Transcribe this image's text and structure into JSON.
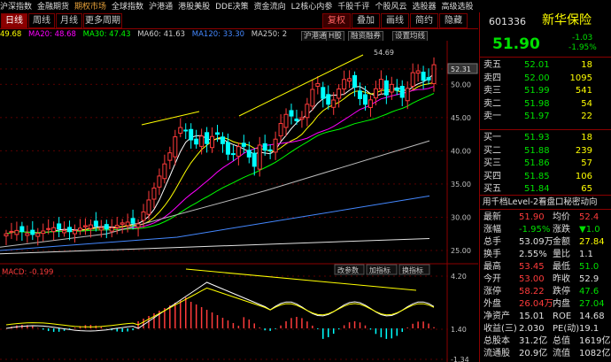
{
  "top_menu": [
    "沪深指数",
    "金融期货",
    "期权市场",
    "全球指数",
    "沪港通",
    "港股美股",
    "DDE决策",
    "资金流向",
    "L2核心内参",
    "千股千评",
    "个股风云",
    "选股器",
    "高级选股"
  ],
  "top_menu_active_index": 2,
  "tabs": {
    "daily": "日线",
    "weekly": "周线",
    "monthly": "月线",
    "more": "更多周期",
    "restore": "复权",
    "overlay": "叠加",
    "quota": "画线",
    "simple": "简约",
    "hide": "隐藏"
  },
  "ma": {
    "ma5": "49.68",
    "ma20": "MA20: 48.68",
    "ma30": "MA30: 47.43",
    "ma60": "MA60: 41.63",
    "ma120": "MA120: 33.30",
    "ma250": "MA250: 2"
  },
  "chart_buttons": {
    "hgt": "沪港通",
    "hshares": "H股",
    "financing": "融资融券",
    "settings": "设置均线"
  },
  "price_axis": [
    "52.31",
    "50.00",
    "45.00",
    "40.00",
    "35.00",
    "30.00",
    "25.00"
  ],
  "max_label": "54.69",
  "indicator": {
    "name": "MACD: -0.199",
    "params": "改参数",
    "add": "加指标",
    "switch": "换指标",
    "axis": [
      "4.20",
      "1.40",
      "-1.34"
    ]
  },
  "stock": {
    "code": "601336",
    "name": "新华保险",
    "price": "51.90",
    "change": "-1.03",
    "change_pct": "-1.95%"
  },
  "asks": [
    {
      "label": "卖五",
      "price": "52.01",
      "vol": "18"
    },
    {
      "label": "卖四",
      "price": "52.00",
      "vol": "1095"
    },
    {
      "label": "卖三",
      "price": "51.99",
      "vol": "541"
    },
    {
      "label": "卖二",
      "price": "51.98",
      "vol": "54"
    },
    {
      "label": "卖一",
      "price": "51.97",
      "vol": "22"
    }
  ],
  "bids": [
    {
      "label": "买一",
      "price": "51.93",
      "vol": "18"
    },
    {
      "label": "买二",
      "price": "51.88",
      "vol": "239"
    },
    {
      "label": "买三",
      "price": "51.86",
      "vol": "57"
    },
    {
      "label": "买四",
      "price": "51.85",
      "vol": "106"
    },
    {
      "label": "买五",
      "price": "51.84",
      "vol": "65"
    }
  ],
  "level2_banner": "用千档Level-2看盘口秘密动向",
  "stats": [
    {
      "l1": "最新",
      "v1": "51.90",
      "c1": "red",
      "l2": "均价",
      "v2": "52.4",
      "c2": "red"
    },
    {
      "l1": "涨幅",
      "v1": "-1.95%",
      "c1": "green",
      "l2": "涨跌",
      "v2": "▼1.0",
      "c2": "green"
    },
    {
      "l1": "总手",
      "v1": "53.09万",
      "c1": "white",
      "l2": "金额",
      "v2": "27.84",
      "c2": "yellow"
    },
    {
      "l1": "换手",
      "v1": "2.55%",
      "c1": "white",
      "l2": "量比",
      "v2": "1.1",
      "c2": "white"
    },
    {
      "l1": "最高",
      "v1": "53.45",
      "c1": "red",
      "l2": "最低",
      "v2": "51.0",
      "c2": "green"
    },
    {
      "l1": "今开",
      "v1": "53.00",
      "c1": "red",
      "l2": "昨收",
      "v2": "52.9",
      "c2": "white"
    },
    {
      "l1": "涨停",
      "v1": "58.22",
      "c1": "red",
      "l2": "跌停",
      "v2": "47.6",
      "c2": "green"
    },
    {
      "l1": "外盘",
      "v1": "26.04万",
      "c1": "red",
      "l2": "内盘",
      "v2": "27.04",
      "c2": "green"
    },
    {
      "l1": "净资产",
      "v1": "15.01",
      "c1": "white",
      "l2": "ROE",
      "v2": "14.68",
      "c2": "white"
    },
    {
      "l1": "收益(三)",
      "v1": "2.030",
      "c1": "white",
      "l2": "PE(动)",
      "v2": "19.1",
      "c2": "white"
    },
    {
      "l1": "总股本",
      "v1": "31.2亿",
      "c1": "white",
      "l2": "总值",
      "v2": "1619亿",
      "c2": "white"
    },
    {
      "l1": "流通股",
      "v1": "20.9亿",
      "c1": "white",
      "l2": "流值",
      "v2": "1082亿",
      "c2": "white"
    }
  ],
  "colors": {
    "up": "#ff3b3b",
    "down": "#00ffff",
    "frame": "#8b0000",
    "ma5": "#ffffff",
    "ma20": "#ffff00",
    "ma30": "#ff00ff",
    "ma60": "#00ff00",
    "ma120": "#bbbbbb",
    "ma250": "#4488ff"
  }
}
